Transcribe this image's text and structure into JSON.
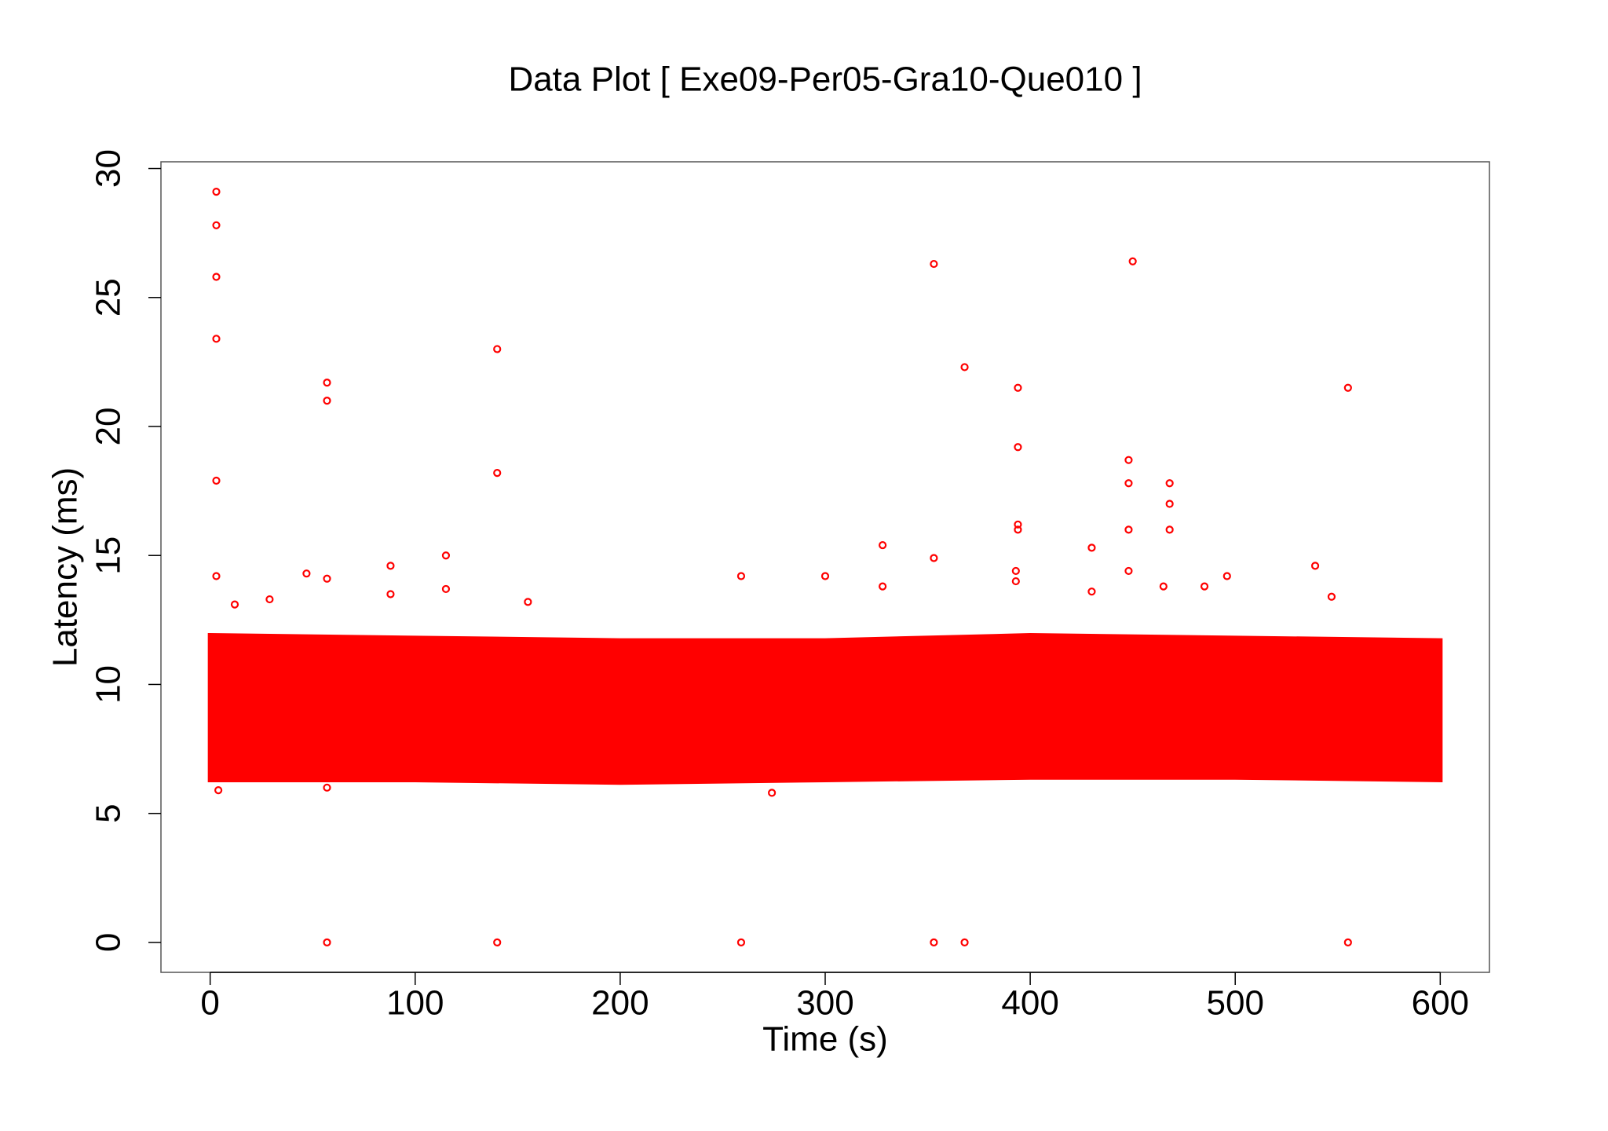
{
  "chart_data": {
    "type": "scatter",
    "title": "Data Plot [ Exe09-Per05-Gra10-Que010 ]",
    "x_label": "Time (s)",
    "y_label": "Latency (ms)",
    "xlim": [
      -24,
      624
    ],
    "ylim": [
      -1.16,
      30.26
    ],
    "xticks": [
      0,
      100,
      200,
      300,
      400,
      500,
      600
    ],
    "yticks": [
      0,
      5,
      10,
      15,
      20,
      25,
      30
    ],
    "color": "#ff0000",
    "band": {
      "x": [
        0,
        100,
        200,
        300,
        400,
        500,
        600
      ],
      "high": [
        11.9,
        11.8,
        11.7,
        11.7,
        11.9,
        11.8,
        11.7
      ],
      "low": [
        6.3,
        6.3,
        6.2,
        6.3,
        6.4,
        6.4,
        6.3
      ]
    },
    "x": [
      3,
      3,
      3,
      3,
      3,
      3,
      57,
      57,
      57,
      57,
      140,
      140,
      140,
      115,
      115,
      88,
      88,
      47,
      259,
      259,
      300,
      328,
      328,
      353,
      353,
      353,
      368,
      368,
      394,
      394,
      394,
      394,
      393,
      393,
      430,
      430,
      450,
      448,
      448,
      448,
      448,
      468,
      468,
      468,
      465,
      485,
      496,
      539,
      547,
      555,
      555,
      274,
      12,
      29,
      155,
      4,
      57
    ],
    "values": [
      29.1,
      27.8,
      25.8,
      23.4,
      17.9,
      14.2,
      21.7,
      21.0,
      14.1,
      0,
      23.0,
      18.2,
      0,
      15.0,
      13.7,
      14.6,
      13.5,
      14.3,
      14.2,
      0,
      14.2,
      15.4,
      13.8,
      26.3,
      14.9,
      0,
      22.3,
      0,
      21.5,
      19.2,
      16.2,
      16.0,
      14.4,
      14.0,
      15.3,
      13.6,
      26.4,
      18.7,
      17.8,
      16.0,
      14.4,
      17.8,
      17.0,
      16.0,
      13.8,
      13.8,
      14.2,
      14.6,
      13.4,
      21.5,
      0,
      5.8,
      13.1,
      13.3,
      13.2,
      5.9,
      6.0
    ]
  }
}
